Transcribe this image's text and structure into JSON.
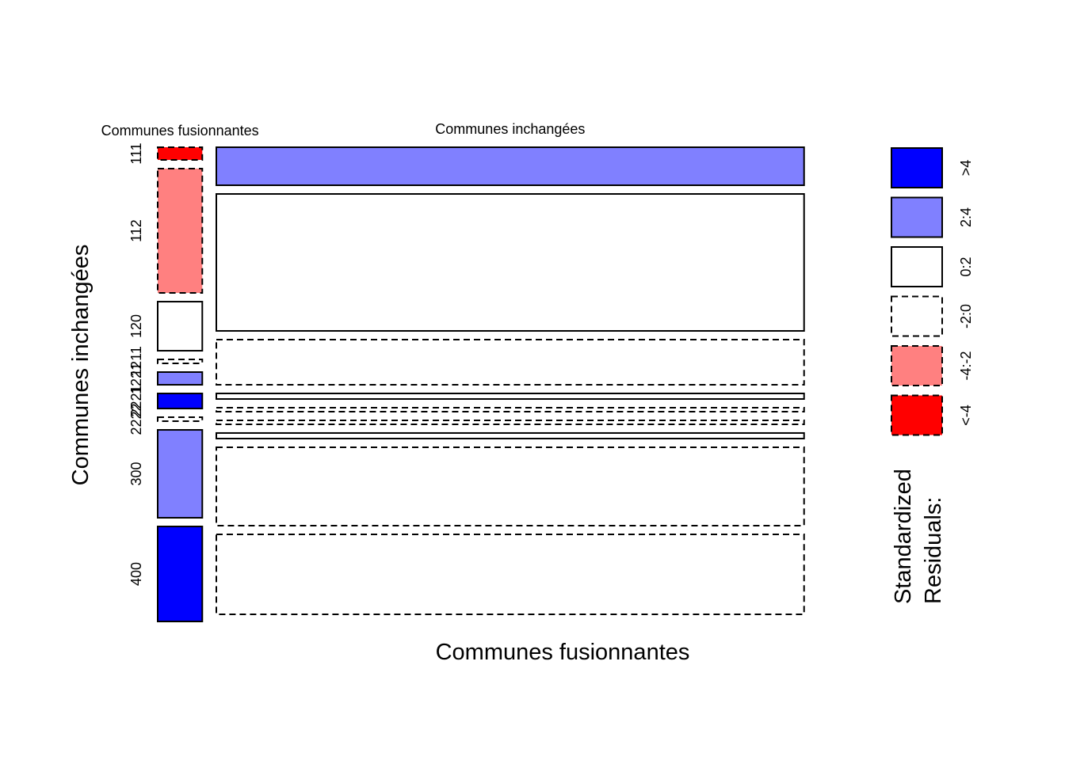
{
  "chart_data": {
    "type": "mosaic",
    "xlabel": "Communes fusionnantes",
    "ylabel": "Communes inchangées",
    "columns": [
      {
        "label": "Communes fusionnantes",
        "width": 0.067
      },
      {
        "label": "Communes inchangées",
        "width": 0.883
      }
    ],
    "row_tick_labels": [
      "111",
      "112",
      "120",
      "1211",
      "1221",
      "2221",
      "2222",
      "300",
      "400"
    ],
    "cells": [
      {
        "row": "111",
        "col": 0,
        "share": 0.0267,
        "residual_class": "<-4"
      },
      {
        "row": "111",
        "col": 1,
        "share": 0.08,
        "residual_class": "2:4"
      },
      {
        "row": "112",
        "col": 0,
        "share": 0.2617,
        "residual_class": "-4:-2"
      },
      {
        "row": "112",
        "col": 1,
        "share": 0.2883,
        "residual_class": "0:2"
      },
      {
        "row": "120",
        "col": 0,
        "share": 0.1033,
        "residual_class": "0:2"
      },
      {
        "row": "120",
        "col": 1,
        "share": 0.095,
        "residual_class": "-2:0"
      },
      {
        "row": "1211",
        "col": 0,
        "share": 0.0083,
        "residual_class": "-2:0"
      },
      {
        "row": "1211",
        "col": 1,
        "share": 0.0117,
        "residual_class": "0:2"
      },
      {
        "row": "1221",
        "col": 0,
        "share": 0.0267,
        "residual_class": "2:4"
      },
      {
        "row": "1221",
        "col": 1,
        "share": 0.0083,
        "residual_class": "-2:0"
      },
      {
        "row": "2221",
        "col": 0,
        "share": 0.0317,
        "residual_class": ">4"
      },
      {
        "row": "2221",
        "col": 1,
        "share": 0.0083,
        "residual_class": "-2:0"
      },
      {
        "row": "2222",
        "col": 0,
        "share": 0.0083,
        "residual_class": "-2:0"
      },
      {
        "row": "2222",
        "col": 1,
        "share": 0.0117,
        "residual_class": "0:2"
      },
      {
        "row": "300",
        "col": 0,
        "share": 0.185,
        "residual_class": "2:4"
      },
      {
        "row": "300",
        "col": 1,
        "share": 0.165,
        "residual_class": "-2:0"
      },
      {
        "row": "400",
        "col": 0,
        "share": 0.2,
        "residual_class": ">4"
      },
      {
        "row": "400",
        "col": 1,
        "share": 0.1683,
        "residual_class": "-2:0"
      }
    ],
    "legend": {
      "title_line1": "Standardized",
      "title_line2": "Residuals:",
      "position": "right",
      "entries": [
        {
          "label": ">4",
          "color": "#0000ff",
          "dashed": false
        },
        {
          "label": "2:4",
          "color": "#8080ff",
          "dashed": false
        },
        {
          "label": "0:2",
          "color": "#ffffff",
          "dashed": false
        },
        {
          "label": "-2:0",
          "color": "#ffffff",
          "dashed": true
        },
        {
          "label": "-4:-2",
          "color": "#ff8080",
          "dashed": true
        },
        {
          "label": "<-4",
          "color": "#ff0000",
          "dashed": true
        }
      ]
    }
  }
}
